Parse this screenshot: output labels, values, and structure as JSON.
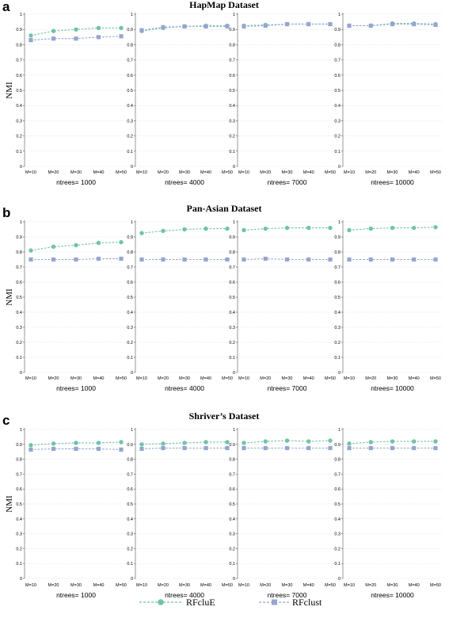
{
  "legend": [
    {
      "name": "RFcluE",
      "color": "#6fc3a8",
      "marker": "circle"
    },
    {
      "name": "RFclust",
      "color": "#96a5cf",
      "marker": "square"
    }
  ],
  "chart_data": [
    {
      "type": "line",
      "panel_letter": "a",
      "title": "HapMap Dataset",
      "ylabel": "NMI",
      "ylim": [
        0,
        1
      ],
      "yticks": [
        "0",
        "0.1",
        "0.2",
        "0.3",
        "0.4",
        "0.5",
        "0.6",
        "0.7",
        "0.8",
        "0.9",
        "1"
      ],
      "categories": [
        "M=10",
        "M=20",
        "M=30",
        "M=40",
        "M=50"
      ],
      "grid": true,
      "subplots": [
        {
          "title": "ntrees= 1000",
          "series": [
            {
              "name": "RFcluE",
              "values": [
                0.86,
                0.89,
                0.9,
                0.91,
                0.91
              ]
            },
            {
              "name": "RFclust",
              "values": [
                0.83,
                0.84,
                0.84,
                0.85,
                0.855
              ]
            }
          ]
        },
        {
          "title": "ntrees= 4000",
          "series": [
            {
              "name": "RFcluE",
              "values": [
                0.89,
                0.91,
                0.92,
                0.925,
                0.925
              ]
            },
            {
              "name": "RFclust",
              "values": [
                0.895,
                0.915,
                0.92,
                0.92,
                0.92
              ]
            }
          ]
        },
        {
          "title": "ntrees= 7000",
          "series": [
            {
              "name": "RFcluE",
              "values": [
                0.925,
                0.93,
                0.935,
                0.935,
                0.935
              ]
            },
            {
              "name": "RFclust",
              "values": [
                0.92,
                0.925,
                0.935,
                0.935,
                0.935
              ]
            }
          ]
        },
        {
          "title": "ntrees= 10000",
          "series": [
            {
              "name": "RFcluE",
              "values": [
                0.925,
                0.925,
                0.94,
                0.94,
                0.935
              ]
            },
            {
              "name": "RFclust",
              "values": [
                0.925,
                0.925,
                0.935,
                0.935,
                0.93
              ]
            }
          ]
        }
      ]
    },
    {
      "type": "line",
      "panel_letter": "b",
      "title": "Pan-Asian Dataset",
      "ylabel": "NMI",
      "ylim": [
        0,
        1
      ],
      "yticks": [
        "0",
        "0.1",
        "0.2",
        "0.3",
        "0.4",
        "0.5",
        "0.6",
        "0.7",
        "0.8",
        "0.9",
        "1"
      ],
      "categories": [
        "M=10",
        "M=20",
        "M=30",
        "M=40",
        "M=50"
      ],
      "grid": true,
      "subplots": [
        {
          "title": "ntrees= 1000",
          "series": [
            {
              "name": "RFcluE",
              "values": [
                0.81,
                0.835,
                0.845,
                0.86,
                0.865
              ]
            },
            {
              "name": "RFclust",
              "values": [
                0.75,
                0.75,
                0.75,
                0.755,
                0.755
              ]
            }
          ]
        },
        {
          "title": "ntrees= 4000",
          "series": [
            {
              "name": "RFcluE",
              "values": [
                0.925,
                0.94,
                0.95,
                0.955,
                0.955
              ]
            },
            {
              "name": "RFclust",
              "values": [
                0.75,
                0.75,
                0.75,
                0.75,
                0.75
              ]
            }
          ]
        },
        {
          "title": "ntrees= 7000",
          "series": [
            {
              "name": "RFcluE",
              "values": [
                0.945,
                0.955,
                0.96,
                0.96,
                0.96
              ]
            },
            {
              "name": "RFclust",
              "values": [
                0.75,
                0.755,
                0.75,
                0.75,
                0.75
              ]
            }
          ]
        },
        {
          "title": "ntrees= 10000",
          "series": [
            {
              "name": "RFcluE",
              "values": [
                0.945,
                0.955,
                0.96,
                0.96,
                0.965
              ]
            },
            {
              "name": "RFclust",
              "values": [
                0.75,
                0.75,
                0.75,
                0.75,
                0.75
              ]
            }
          ]
        }
      ]
    },
    {
      "type": "line",
      "panel_letter": "c",
      "title": "Shriver’s Dataset",
      "ylabel": "NMI",
      "ylim": [
        0,
        1
      ],
      "yticks": [
        "0",
        "0.1",
        "0.2",
        "0.3",
        "0.4",
        "0.5",
        "0.6",
        "0.7",
        "0.8",
        "0.9",
        "1"
      ],
      "categories": [
        "M=10",
        "M=20",
        "M=30",
        "M=40",
        "M=50"
      ],
      "grid": true,
      "subplots": [
        {
          "title": "ntrees= 1000",
          "series": [
            {
              "name": "RFcluE",
              "values": [
                0.895,
                0.905,
                0.91,
                0.91,
                0.915
              ]
            },
            {
              "name": "RFclust",
              "values": [
                0.865,
                0.87,
                0.87,
                0.87,
                0.865
              ]
            }
          ]
        },
        {
          "title": "ntrees= 4000",
          "series": [
            {
              "name": "RFcluE",
              "values": [
                0.9,
                0.905,
                0.91,
                0.915,
                0.915
              ]
            },
            {
              "name": "RFclust",
              "values": [
                0.87,
                0.875,
                0.875,
                0.875,
                0.875
              ]
            }
          ]
        },
        {
          "title": "ntrees= 7000",
          "series": [
            {
              "name": "RFcluE",
              "values": [
                0.91,
                0.92,
                0.925,
                0.92,
                0.925
              ]
            },
            {
              "name": "RFclust",
              "values": [
                0.875,
                0.875,
                0.875,
                0.875,
                0.875
              ]
            }
          ]
        },
        {
          "title": "ntrees= 10000",
          "series": [
            {
              "name": "RFcluE",
              "values": [
                0.905,
                0.915,
                0.92,
                0.92,
                0.92
              ]
            },
            {
              "name": "RFclust",
              "values": [
                0.875,
                0.875,
                0.875,
                0.875,
                0.875
              ]
            }
          ]
        }
      ]
    }
  ]
}
